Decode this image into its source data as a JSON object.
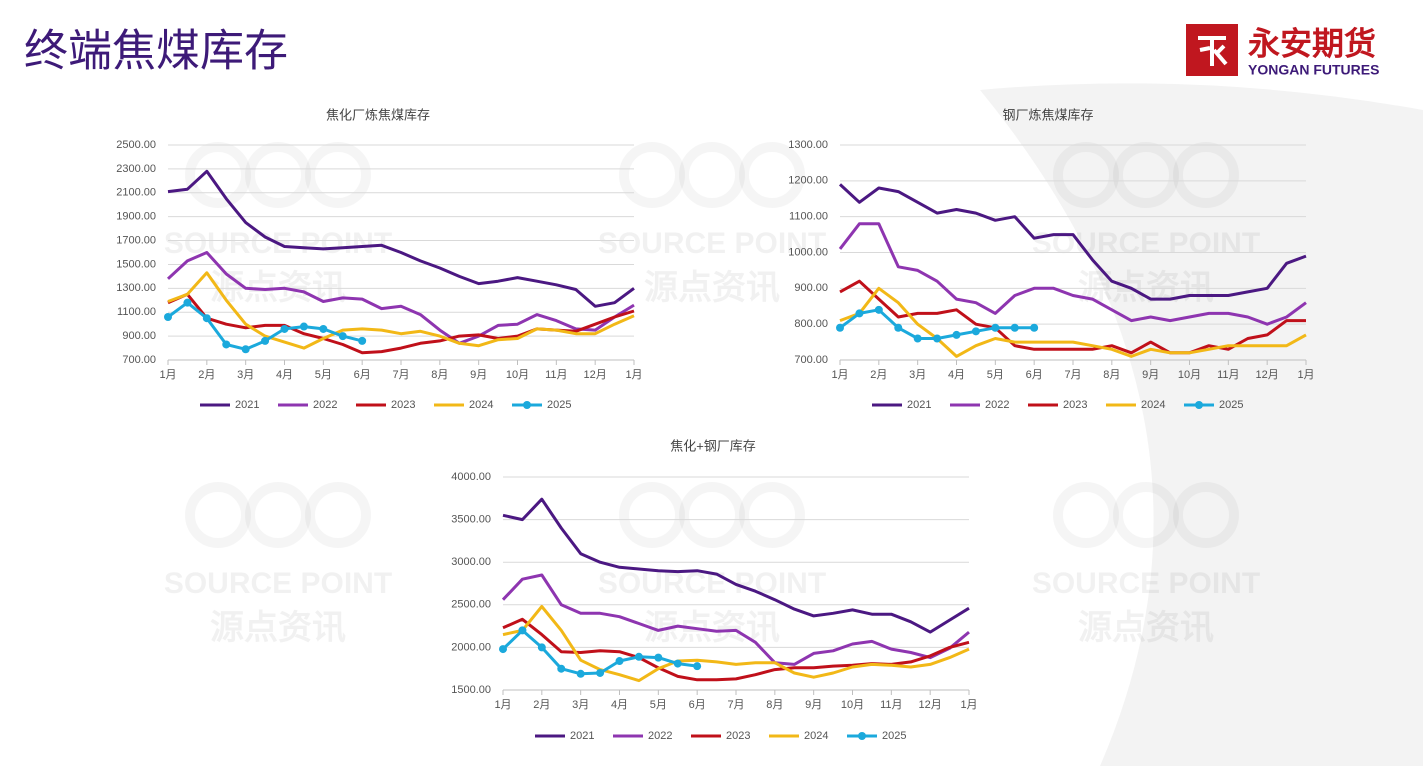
{
  "header": {
    "title": "终端焦煤库存",
    "logo_cn": "永安期货",
    "logo_en": "YONGAN FUTURES"
  },
  "watermark": [
    "SOURCE POINT",
    "源点资讯"
  ],
  "chart_data": [
    {
      "type": "line",
      "title": "焦化厂炼焦煤库存",
      "categories": [
        "1月",
        null,
        "2月",
        null,
        "3月",
        null,
        "4月",
        null,
        "5月",
        null,
        "6月",
        null,
        "7月",
        null,
        "8月",
        null,
        "9月",
        null,
        "10月",
        null,
        "11月",
        null,
        "12月",
        null,
        "1月"
      ],
      "ylim": [
        700,
        2500
      ],
      "yticks": [
        {
          "value": 700,
          "label": "700.00"
        },
        {
          "value": 900,
          "label": "900.00"
        },
        {
          "value": 1100,
          "label": "1100.00"
        },
        {
          "value": 1300,
          "label": "1300.00"
        },
        {
          "value": 1500,
          "label": "1500.00"
        },
        {
          "value": 1700,
          "label": "1700.00"
        },
        {
          "value": 1900,
          "label": "1900.00"
        },
        {
          "value": 2100,
          "label": "2100.00"
        },
        {
          "value": 2300,
          "label": "2300.00"
        },
        {
          "value": 2500,
          "label": "2500.00"
        }
      ],
      "grid": true,
      "series": [
        {
          "name": "2021",
          "color": "#4b1882",
          "values": [
            2110,
            2130,
            2280,
            2050,
            1850,
            1730,
            1650,
            1640,
            1630,
            1640,
            1650,
            1660,
            1600,
            1530,
            1470,
            1400,
            1340,
            1360,
            1390,
            1360,
            1330,
            1290,
            1150,
            1180,
            1300
          ]
        },
        {
          "name": "2022",
          "color": "#8e35b0",
          "values": [
            1380,
            1530,
            1600,
            1420,
            1300,
            1290,
            1300,
            1270,
            1190,
            1220,
            1210,
            1130,
            1150,
            1080,
            950,
            840,
            900,
            990,
            1000,
            1080,
            1030,
            960,
            950,
            1060,
            1160
          ]
        },
        {
          "name": "2023",
          "color": "#c0101a",
          "values": [
            1180,
            1250,
            1050,
            1000,
            970,
            990,
            990,
            920,
            880,
            830,
            760,
            770,
            800,
            840,
            860,
            900,
            910,
            880,
            900,
            960,
            950,
            940,
            1000,
            1060,
            1110
          ]
        },
        {
          "name": "2024",
          "color": "#f2b817",
          "values": [
            1190,
            1250,
            1430,
            1200,
            1000,
            900,
            850,
            800,
            880,
            950,
            960,
            950,
            920,
            940,
            900,
            840,
            820,
            870,
            880,
            960,
            950,
            920,
            920,
            1000,
            1070
          ]
        },
        {
          "name": "2025",
          "color": "#1ba9dc",
          "marker": true,
          "values": [
            1060,
            1180,
            1050,
            830,
            790,
            860,
            960,
            980,
            960,
            900,
            860,
            null,
            null,
            null,
            null,
            null,
            null,
            null,
            null,
            null,
            null,
            null,
            null,
            null,
            null
          ]
        }
      ]
    },
    {
      "type": "line",
      "title": "钢厂炼焦煤库存",
      "categories": [
        "1月",
        null,
        "2月",
        null,
        "3月",
        null,
        "4月",
        null,
        "5月",
        null,
        "6月",
        null,
        "7月",
        null,
        "8月",
        null,
        "9月",
        null,
        "10月",
        null,
        "11月",
        null,
        "12月",
        null,
        "1月"
      ],
      "ylim": [
        700,
        1300
      ],
      "yticks": [
        {
          "value": 700,
          "label": "700.00"
        },
        {
          "value": 800,
          "label": "800.00"
        },
        {
          "value": 900,
          "label": "900.00"
        },
        {
          "value": 1000,
          "label": "1000.00"
        },
        {
          "value": 1100,
          "label": "1100.00"
        },
        {
          "value": 1200,
          "label": "1200.00"
        },
        {
          "value": 1300,
          "label": "1300.00"
        }
      ],
      "grid": true,
      "series": [
        {
          "name": "2021",
          "color": "#4b1882",
          "values": [
            1190,
            1140,
            1180,
            1170,
            1140,
            1110,
            1120,
            1110,
            1090,
            1100,
            1040,
            1050,
            1050,
            980,
            920,
            900,
            870,
            870,
            880,
            880,
            880,
            890,
            900,
            970,
            990
          ]
        },
        {
          "name": "2022",
          "color": "#8e35b0",
          "values": [
            1010,
            1080,
            1080,
            960,
            950,
            920,
            870,
            860,
            830,
            880,
            900,
            900,
            880,
            870,
            840,
            810,
            820,
            810,
            820,
            830,
            830,
            820,
            800,
            820,
            860
          ]
        },
        {
          "name": "2023",
          "color": "#c0101a",
          "values": [
            890,
            920,
            870,
            820,
            830,
            830,
            840,
            800,
            790,
            740,
            730,
            730,
            730,
            730,
            740,
            720,
            750,
            720,
            720,
            740,
            730,
            760,
            770,
            810,
            810
          ]
        },
        {
          "name": "2024",
          "color": "#f2b817",
          "values": [
            810,
            830,
            900,
            860,
            800,
            760,
            710,
            740,
            760,
            750,
            750,
            750,
            750,
            740,
            730,
            710,
            730,
            720,
            720,
            730,
            740,
            740,
            740,
            740,
            770
          ]
        },
        {
          "name": "2025",
          "color": "#1ba9dc",
          "marker": true,
          "values": [
            790,
            830,
            840,
            790,
            760,
            760,
            770,
            780,
            790,
            790,
            790,
            null,
            null,
            null,
            null,
            null,
            null,
            null,
            null,
            null,
            null,
            null,
            null,
            null,
            null
          ]
        }
      ]
    },
    {
      "type": "line",
      "title": "焦化+钢厂库存",
      "categories": [
        "1月",
        null,
        "2月",
        null,
        "3月",
        null,
        "4月",
        null,
        "5月",
        null,
        "6月",
        null,
        "7月",
        null,
        "8月",
        null,
        "9月",
        null,
        "10月",
        null,
        "11月",
        null,
        "12月",
        null,
        "1月"
      ],
      "ylim": [
        1500,
        4000
      ],
      "yticks": [
        {
          "value": 1500,
          "label": "1500.00"
        },
        {
          "value": 2000,
          "label": "2000.00"
        },
        {
          "value": 2500,
          "label": "2500.00"
        },
        {
          "value": 3000,
          "label": "3000.00"
        },
        {
          "value": 3500,
          "label": "3500.00"
        },
        {
          "value": 4000,
          "label": "4000.00"
        }
      ],
      "grid": true,
      "series": [
        {
          "name": "2021",
          "color": "#4b1882",
          "values": [
            3550,
            3500,
            3740,
            3400,
            3100,
            3000,
            2940,
            2920,
            2900,
            2890,
            2900,
            2860,
            2740,
            2660,
            2560,
            2450,
            2370,
            2400,
            2440,
            2390,
            2390,
            2300,
            2180,
            2320,
            2460
          ]
        },
        {
          "name": "2022",
          "color": "#8e35b0",
          "values": [
            2560,
            2800,
            2850,
            2500,
            2400,
            2400,
            2360,
            2280,
            2200,
            2250,
            2220,
            2190,
            2200,
            2060,
            1820,
            1800,
            1930,
            1960,
            2040,
            2070,
            1980,
            1940,
            1880,
            1990,
            2180
          ]
        },
        {
          "name": "2023",
          "color": "#c0101a",
          "values": [
            2230,
            2330,
            2150,
            1950,
            1940,
            1960,
            1950,
            1880,
            1760,
            1660,
            1620,
            1620,
            1630,
            1680,
            1740,
            1760,
            1760,
            1780,
            1790,
            1810,
            1800,
            1830,
            1900,
            2000,
            2060
          ]
        },
        {
          "name": "2024",
          "color": "#f2b817",
          "values": [
            2150,
            2200,
            2480,
            2200,
            1850,
            1740,
            1680,
            1610,
            1750,
            1840,
            1850,
            1830,
            1800,
            1820,
            1820,
            1700,
            1650,
            1700,
            1770,
            1800,
            1790,
            1770,
            1800,
            1880,
            1980
          ]
        },
        {
          "name": "2025",
          "color": "#1ba9dc",
          "marker": true,
          "values": [
            1980,
            2200,
            2000,
            1750,
            1690,
            1700,
            1840,
            1890,
            1880,
            1810,
            1780,
            null,
            null,
            null,
            null,
            null,
            null,
            null,
            null,
            null,
            null,
            null,
            null,
            null,
            null
          ]
        }
      ]
    }
  ]
}
